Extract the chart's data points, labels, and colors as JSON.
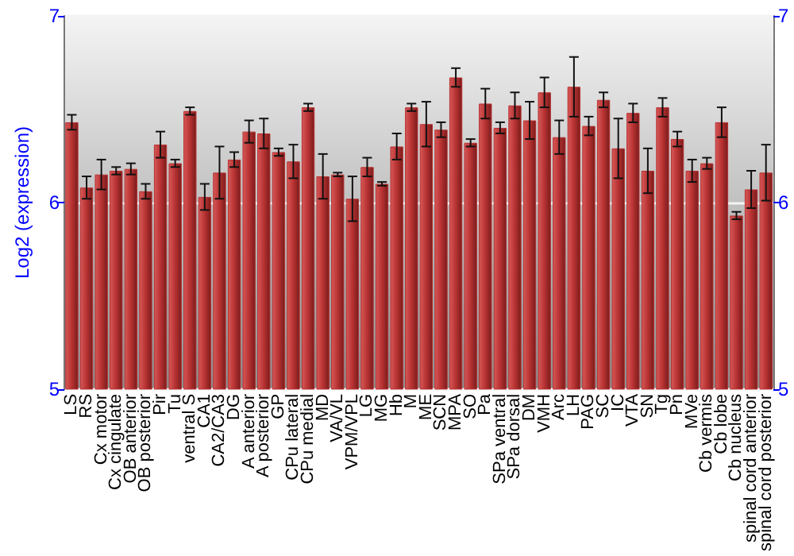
{
  "chart_data": {
    "type": "bar",
    "ylabel": "Log2 (expression)",
    "categories": [
      "LS",
      "RS",
      "Cx motor",
      "Cx cingulate",
      "OB anterior",
      "OB posterior",
      "Pir",
      "Tu",
      "ventral S",
      "CA1",
      "CA2/CA3",
      "DG",
      "A anterior",
      "A posterior",
      "GP",
      "CPu lateral",
      "CPu medial",
      "MD",
      "VA/VL",
      "VPM/VPL",
      "LG",
      "MG",
      "Hb",
      "M",
      "ME",
      "SCN",
      "MPA",
      "SO",
      "Pa",
      "SPa ventral",
      "SPa dorsal",
      "DM",
      "VMH",
      "Arc",
      "LH",
      "PAG",
      "SC",
      "IC",
      "VTA",
      "SN",
      "Tg",
      "Pn",
      "MVe",
      "Cb vermis",
      "Cb lobe",
      "Cb nucleus",
      "spinal cord anterior",
      "spinal cord posterior"
    ],
    "series": [
      {
        "color": "#b83232",
        "values": [
          6.43,
          6.08,
          6.15,
          6.17,
          6.18,
          6.06,
          6.31,
          6.21,
          6.49,
          6.03,
          6.16,
          6.23,
          6.38,
          6.37,
          6.27,
          6.22,
          6.51,
          6.14,
          6.15,
          6.02,
          6.19,
          6.1,
          6.3,
          6.51,
          6.42,
          6.39,
          6.67,
          6.32,
          6.53,
          6.4,
          6.52,
          6.44,
          6.59,
          6.35,
          6.62,
          6.41,
          6.55,
          6.29,
          6.48,
          6.17,
          6.51,
          6.34,
          6.17,
          6.21,
          6.43,
          5.93,
          6.07,
          6.16
        ],
        "errors": [
          0.04,
          0.06,
          0.08,
          0.02,
          0.03,
          0.04,
          0.07,
          0.02,
          0.02,
          0.07,
          0.14,
          0.04,
          0.06,
          0.08,
          0.02,
          0.09,
          0.02,
          0.12,
          0.01,
          0.12,
          0.05,
          0.01,
          0.07,
          0.02,
          0.12,
          0.04,
          0.05,
          0.02,
          0.08,
          0.03,
          0.07,
          0.1,
          0.08,
          0.09,
          0.16,
          0.05,
          0.04,
          0.16,
          0.05,
          0.12,
          0.05,
          0.04,
          0.06,
          0.03,
          0.08,
          0.02,
          0.1,
          0.15
        ]
      }
    ],
    "ylim": [
      5,
      7
    ],
    "yticks": [
      5,
      6,
      7
    ],
    "y2lim": [
      5,
      7
    ],
    "y2ticks": [
      5,
      6,
      7
    ],
    "grid": "y"
  }
}
